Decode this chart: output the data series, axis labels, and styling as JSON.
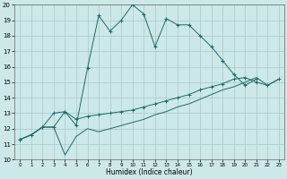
{
  "xlabel": "Humidex (Indice chaleur)",
  "xlim": [
    -0.5,
    23.5
  ],
  "ylim": [
    10,
    20
  ],
  "xticks": [
    0,
    1,
    2,
    3,
    4,
    5,
    6,
    7,
    8,
    9,
    10,
    11,
    12,
    13,
    14,
    15,
    16,
    17,
    18,
    19,
    20,
    21,
    22,
    23
  ],
  "yticks": [
    10,
    11,
    12,
    13,
    14,
    15,
    16,
    17,
    18,
    19,
    20
  ],
  "bg_color": "#cde8e8",
  "line_color": "#1a6b6b",
  "grid_color": "#a8c8c8",
  "line1_x": [
    0,
    1,
    2,
    3,
    4,
    5,
    6,
    7,
    8,
    9,
    10,
    11,
    12,
    13,
    14,
    15,
    16,
    17,
    18,
    19,
    20,
    21
  ],
  "line1_y": [
    11.3,
    11.6,
    12.1,
    12.1,
    13.1,
    12.2,
    15.9,
    19.3,
    18.3,
    19.0,
    20.0,
    19.4,
    17.3,
    19.1,
    18.7,
    18.7,
    18.0,
    17.3,
    16.4,
    15.5,
    14.8,
    15.2
  ],
  "line2_x": [
    0,
    1,
    2,
    3,
    4,
    5,
    6,
    7,
    8,
    9,
    10,
    11,
    12,
    13,
    14,
    15,
    16,
    17,
    18,
    19,
    20,
    21,
    22,
    23
  ],
  "line2_y": [
    11.3,
    11.6,
    12.1,
    13.0,
    13.1,
    12.6,
    12.8,
    12.9,
    13.0,
    13.1,
    13.2,
    13.4,
    13.6,
    13.8,
    14.0,
    14.2,
    14.5,
    14.7,
    14.9,
    15.2,
    15.3,
    15.0,
    14.8,
    15.2
  ],
  "line3_x": [
    0,
    1,
    2,
    3,
    4,
    5,
    6,
    7,
    8,
    9,
    10,
    11,
    12,
    13,
    14,
    15,
    16,
    17,
    18,
    19,
    20,
    21,
    22,
    23
  ],
  "line3_y": [
    11.3,
    11.6,
    12.1,
    12.1,
    10.3,
    11.5,
    12.0,
    11.8,
    12.0,
    12.2,
    12.4,
    12.6,
    12.9,
    13.1,
    13.4,
    13.6,
    13.9,
    14.2,
    14.5,
    14.7,
    15.0,
    15.3,
    14.8,
    15.2
  ]
}
